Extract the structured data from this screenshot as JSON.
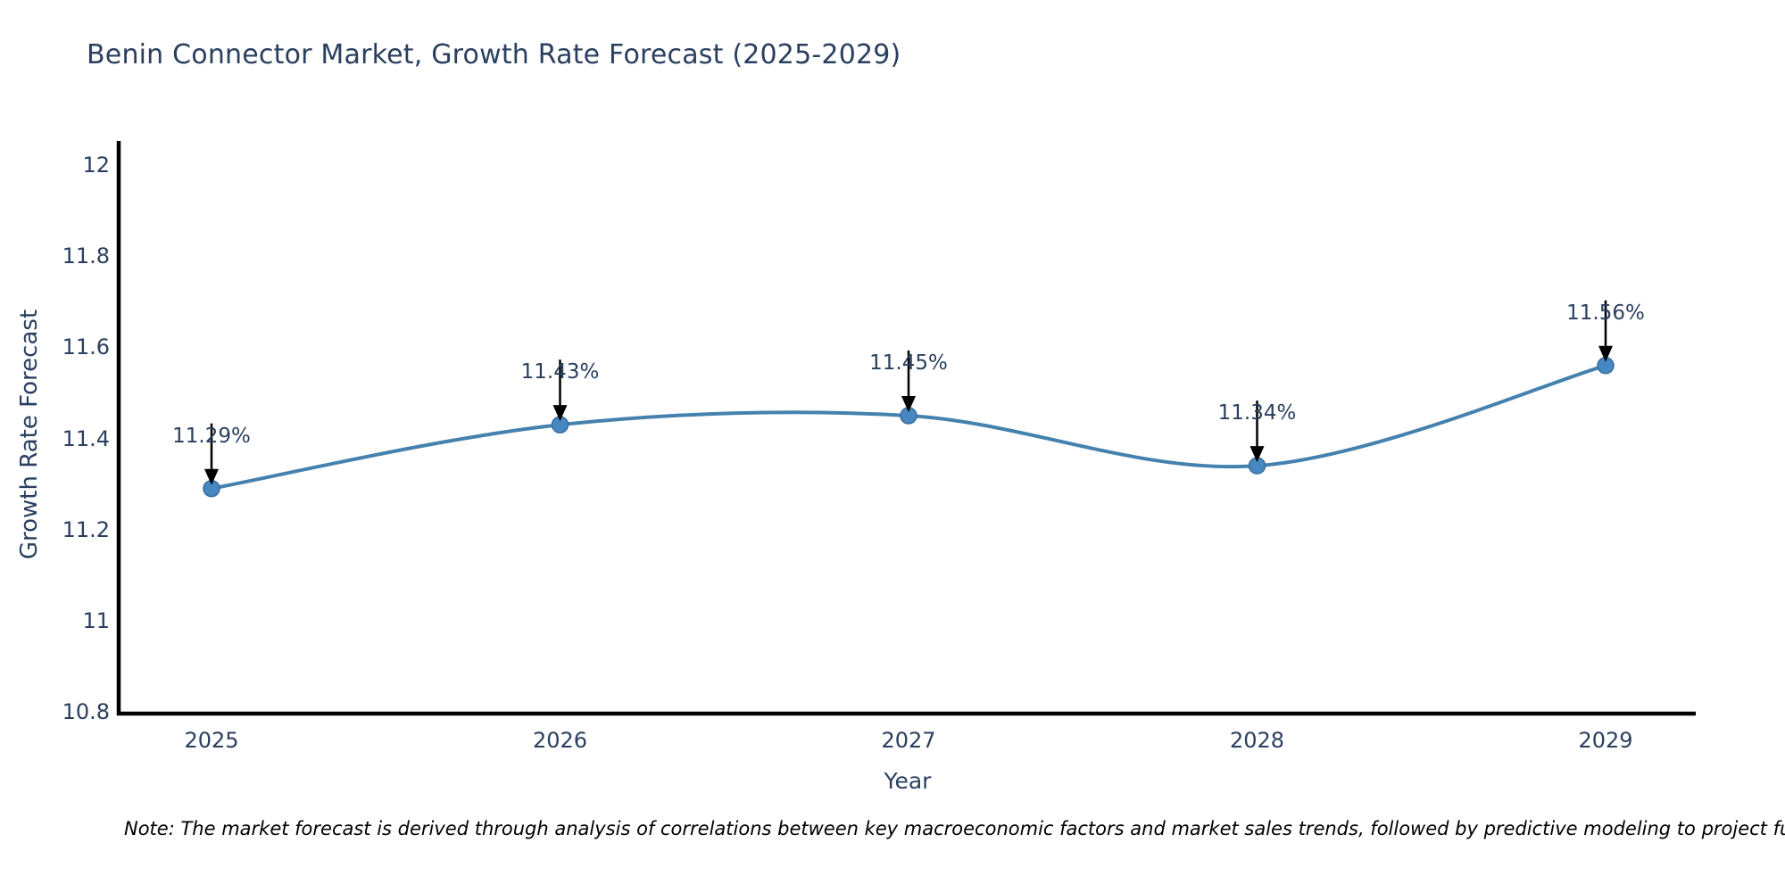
{
  "title": "Benin Connector Market, Growth Rate Forecast (2025-2029)",
  "note": "Note: The market forecast is derived through analysis of correlations between key macroeconomic factors and market sales trends, followed by predictive modeling to project future sal",
  "colors": {
    "title_text": "#2a3f5f",
    "tick_text": "#2a3f5f",
    "axis_line": "#000000",
    "annotation_arrow": "#000000"
  },
  "chart_data": {
    "type": "line",
    "title": "Benin Connector Market, Growth Rate Forecast (2025-2029)",
    "x": [
      2025,
      2026,
      2027,
      2028,
      2029
    ],
    "series": [
      {
        "name": "Growth Rate Forecast",
        "values": [
          11.29,
          11.43,
          11.45,
          11.34,
          11.56
        ]
      }
    ],
    "point_labels": [
      "11.29%",
      "11.43%",
      "11.45%",
      "11.34%",
      "11.56%"
    ],
    "xlabel": "Year",
    "ylabel": "Growth Rate Forecast",
    "ylim": [
      10.8,
      12
    ],
    "ytick_labels": [
      "10.8",
      "11",
      "11.2",
      "11.4",
      "11.6",
      "11.8",
      "12"
    ],
    "ytick_values": [
      10.8,
      11,
      11.2,
      11.4,
      11.6,
      11.8,
      12
    ],
    "line_shape": "spline",
    "line_color": "#4581ae",
    "marker_color": "#4787c2",
    "marker_edge_color": "#3a6d9e",
    "grid": false,
    "legend_position": "none"
  }
}
